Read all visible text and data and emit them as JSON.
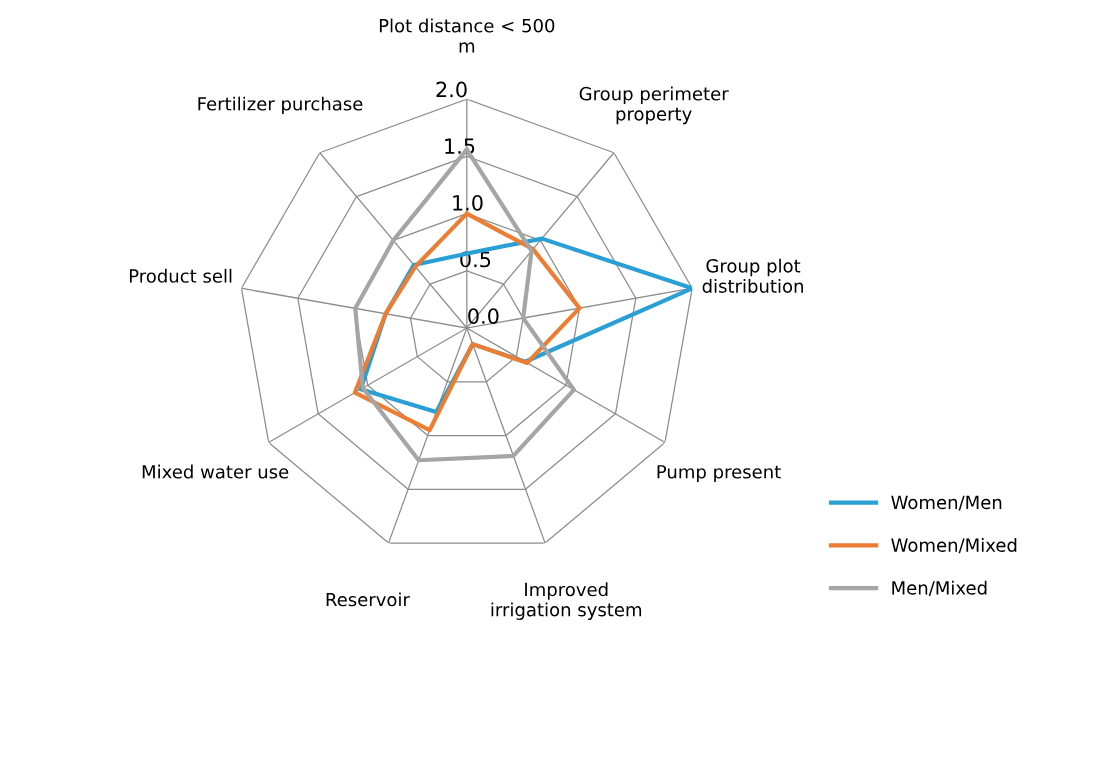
{
  "chart_data": {
    "type": "radar",
    "categories": [
      "Plot distance < 500\nm",
      "Group perimeter\nproperty",
      "Group plot\ndistribution",
      "Pump present",
      "Improved\nirrigation system",
      "Reservoir",
      "Mixed water use",
      "Product sell",
      "Fertilizer purchase"
    ],
    "series": [
      {
        "name": "Women/Men",
        "color": "#2a9fd6",
        "values": [
          0.65,
          1.02,
          2.0,
          0.59,
          0.15,
          0.78,
          1.07,
          0.72,
          0.72
        ]
      },
      {
        "name": "Women/Mixed",
        "color": "#ed7d31",
        "values": [
          1.0,
          0.9,
          1.0,
          0.61,
          0.15,
          0.95,
          1.13,
          0.72,
          0.7
        ]
      },
      {
        "name": "Men/Mixed",
        "color": "#a5a5a5",
        "values": [
          1.56,
          0.88,
          0.5,
          1.08,
          1.19,
          1.23,
          1.05,
          0.99,
          1.0
        ]
      }
    ],
    "ylim": [
      0,
      2.0
    ],
    "yticks": [
      {
        "value": 0,
        "label": "0.0"
      },
      {
        "value": 0.5,
        "label": "0.5"
      },
      {
        "value": 1.0,
        "label": "1.0"
      },
      {
        "value": 1.5,
        "label": "1.5"
      },
      {
        "value": 2.0,
        "label": "2.0"
      }
    ],
    "grid": true,
    "legend": "right"
  }
}
